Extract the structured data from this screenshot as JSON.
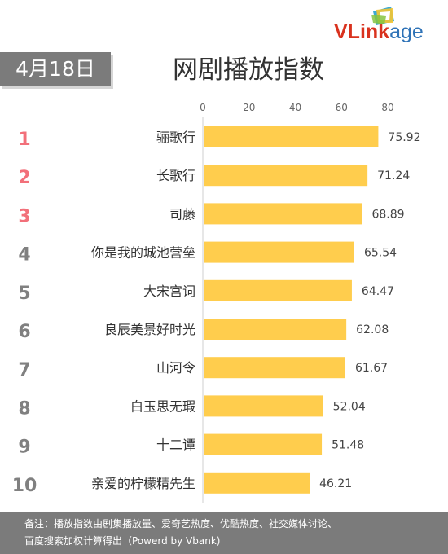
{
  "header": {
    "date": "4月18日",
    "title": "网剧播放指数",
    "logo": {
      "v": "VL",
      "mid": "ink",
      "end": "age"
    }
  },
  "chart_data": {
    "type": "bar",
    "orientation": "horizontal",
    "title": "网剧播放指数",
    "ranks": [
      "1",
      "2",
      "3",
      "4",
      "5",
      "6",
      "7",
      "8",
      "9",
      "10"
    ],
    "categories": [
      "骊歌行",
      "长歌行",
      "司藤",
      "你是我的城池营垒",
      "大宋宫词",
      "良辰美景好时光",
      "山河令",
      "白玉思无瑕",
      "十二谭",
      "亲爱的柠檬精先生"
    ],
    "values": [
      75.92,
      71.24,
      68.89,
      65.54,
      64.47,
      62.08,
      61.67,
      52.04,
      51.48,
      46.21
    ],
    "value_labels": [
      "75.92",
      "71.24",
      "68.89",
      "65.54",
      "64.47",
      "62.08",
      "61.67",
      "52.04",
      "51.48",
      "46.21"
    ],
    "xticks": [
      "0",
      "20",
      "40",
      "60",
      "80"
    ],
    "xlim": [
      0,
      80
    ],
    "axis_position": "top",
    "grid": false,
    "colors": {
      "bar": "#ffcd4d",
      "rank_top": "#f2707a",
      "rank_rest": "#808080"
    }
  },
  "footer": {
    "line1": "备注：播放指数由剧集播放量、爱奇艺热度、优酷热度、社交媒体讨论、",
    "line2": "百度搜索加权计算得出（Powerd by Vbank)"
  }
}
